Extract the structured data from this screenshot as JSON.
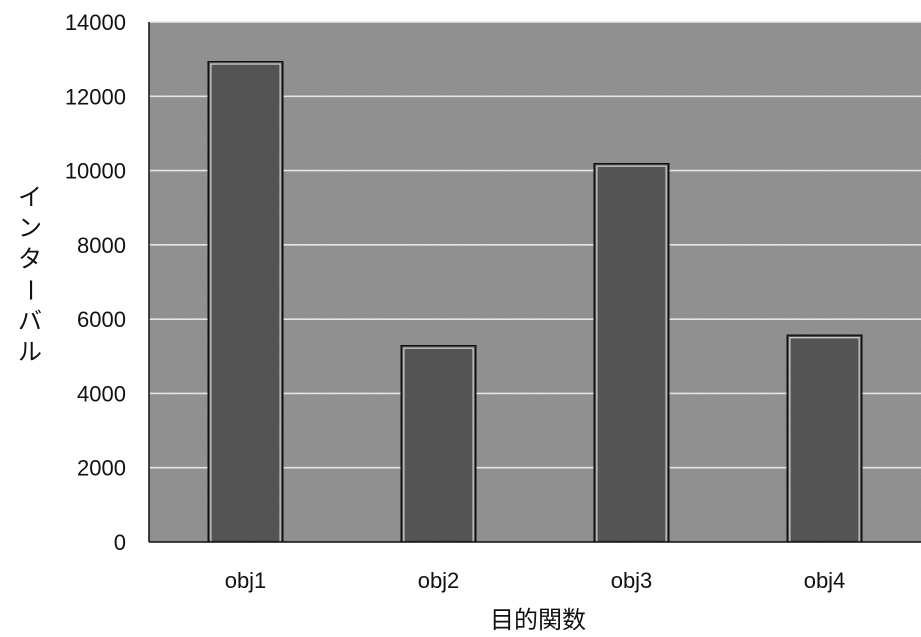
{
  "chart_data": {
    "type": "bar",
    "title": "",
    "xlabel": "目的関数",
    "ylabel": "インターバル",
    "categories": [
      "obj1",
      "obj2",
      "obj3",
      "obj4"
    ],
    "values": [
      12950,
      5300,
      10200,
      5580
    ],
    "ylim": [
      0,
      14000
    ],
    "yticks": [
      0,
      2000,
      4000,
      6000,
      8000,
      10000,
      12000,
      14000
    ],
    "ytick_labels": [
      "0",
      "2000",
      "4000",
      "6000",
      "8000",
      "10000",
      "12000",
      "14000"
    ],
    "grid": true,
    "legend": "none",
    "colors": {
      "plot_background": "#9a9a9a",
      "bar_fill": "#5a5a5a",
      "bar_stroke": "#111111",
      "gridline": "#e4e4e4"
    }
  }
}
